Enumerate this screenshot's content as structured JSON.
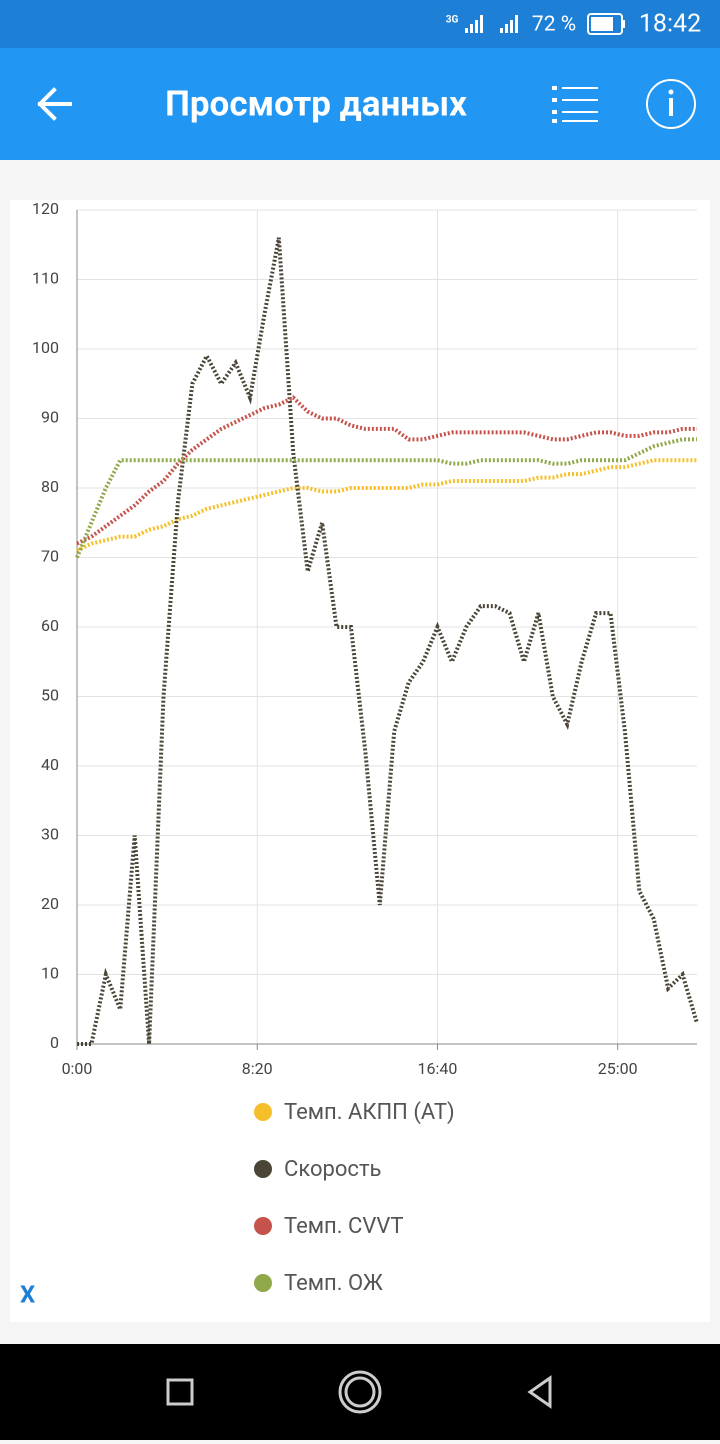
{
  "status_bar": {
    "network": "3G",
    "battery": "72 %",
    "time": "18:42"
  },
  "app_bar": {
    "title": "Просмотр данных"
  },
  "chart_data": {
    "type": "line",
    "x": [
      0,
      40,
      80,
      120,
      160,
      200,
      240,
      280,
      320,
      360,
      400,
      440,
      480,
      520,
      560,
      600,
      640,
      680,
      720,
      760,
      800,
      840,
      880,
      920,
      960,
      1000,
      1040,
      1080,
      1120,
      1160,
      1200,
      1240,
      1280,
      1320,
      1360,
      1400,
      1440,
      1480,
      1520,
      1560,
      1600,
      1640,
      1680,
      1720
    ],
    "xlim": [
      0,
      1720
    ],
    "xticks": [
      {
        "value": 0,
        "label": "0:00"
      },
      {
        "value": 500,
        "label": "8:20"
      },
      {
        "value": 1000,
        "label": "16:40"
      },
      {
        "value": 1500,
        "label": "25:00"
      }
    ],
    "ylim": [
      0,
      120
    ],
    "yticks": [
      0,
      10,
      20,
      30,
      40,
      50,
      60,
      70,
      80,
      90,
      100,
      110,
      120
    ],
    "grid": true,
    "series": [
      {
        "name": "Темп. АКПП (AT)",
        "color": "#f5bf2a",
        "values": [
          71,
          72,
          72.5,
          73,
          73,
          74,
          74.5,
          75.5,
          76,
          77,
          77.5,
          78,
          78.5,
          79,
          79.5,
          80,
          80,
          79.5,
          79.5,
          80,
          80,
          80,
          80,
          80,
          80.5,
          80.5,
          81,
          81,
          81,
          81,
          81,
          81,
          81.5,
          81.5,
          82,
          82,
          82.5,
          83,
          83,
          83.5,
          84,
          84,
          84,
          84
        ]
      },
      {
        "name": "Скорость",
        "color": "#4a4536",
        "values": [
          0,
          0,
          10,
          5,
          30,
          0,
          50,
          78,
          95,
          99,
          95,
          98,
          93,
          105,
          116,
          85,
          68,
          75,
          60,
          60,
          42,
          20,
          45,
          52,
          55,
          60,
          55,
          60,
          63,
          63,
          62,
          55,
          62,
          50,
          46,
          55,
          62,
          62,
          45,
          22,
          18,
          8,
          10,
          3
        ]
      },
      {
        "name": "Темп. CVVT",
        "color": "#c6534b",
        "values": [
          72,
          73,
          74.5,
          76,
          77.5,
          79.5,
          81,
          83.5,
          85.5,
          87,
          88.5,
          89.5,
          90.5,
          91.5,
          92,
          93,
          91,
          90,
          90,
          89,
          88.5,
          88.5,
          88.5,
          87,
          87,
          87.5,
          88,
          88,
          88,
          88,
          88,
          88,
          87.5,
          87,
          87,
          87.5,
          88,
          88,
          87.5,
          87.5,
          88,
          88,
          88.5,
          88.5
        ]
      },
      {
        "name": "Темп. ОЖ",
        "color": "#8fa94a",
        "values": [
          70,
          75,
          80,
          84,
          84,
          84,
          84,
          84,
          84,
          84,
          84,
          84,
          84,
          84,
          84,
          84,
          84,
          84,
          84,
          84,
          84,
          84,
          84,
          84,
          84,
          84,
          83.5,
          83.5,
          84,
          84,
          84,
          84,
          84,
          83.5,
          83.5,
          84,
          84,
          84,
          84,
          85,
          86,
          86.5,
          87,
          87
        ]
      }
    ]
  },
  "axis_toggle": "X"
}
